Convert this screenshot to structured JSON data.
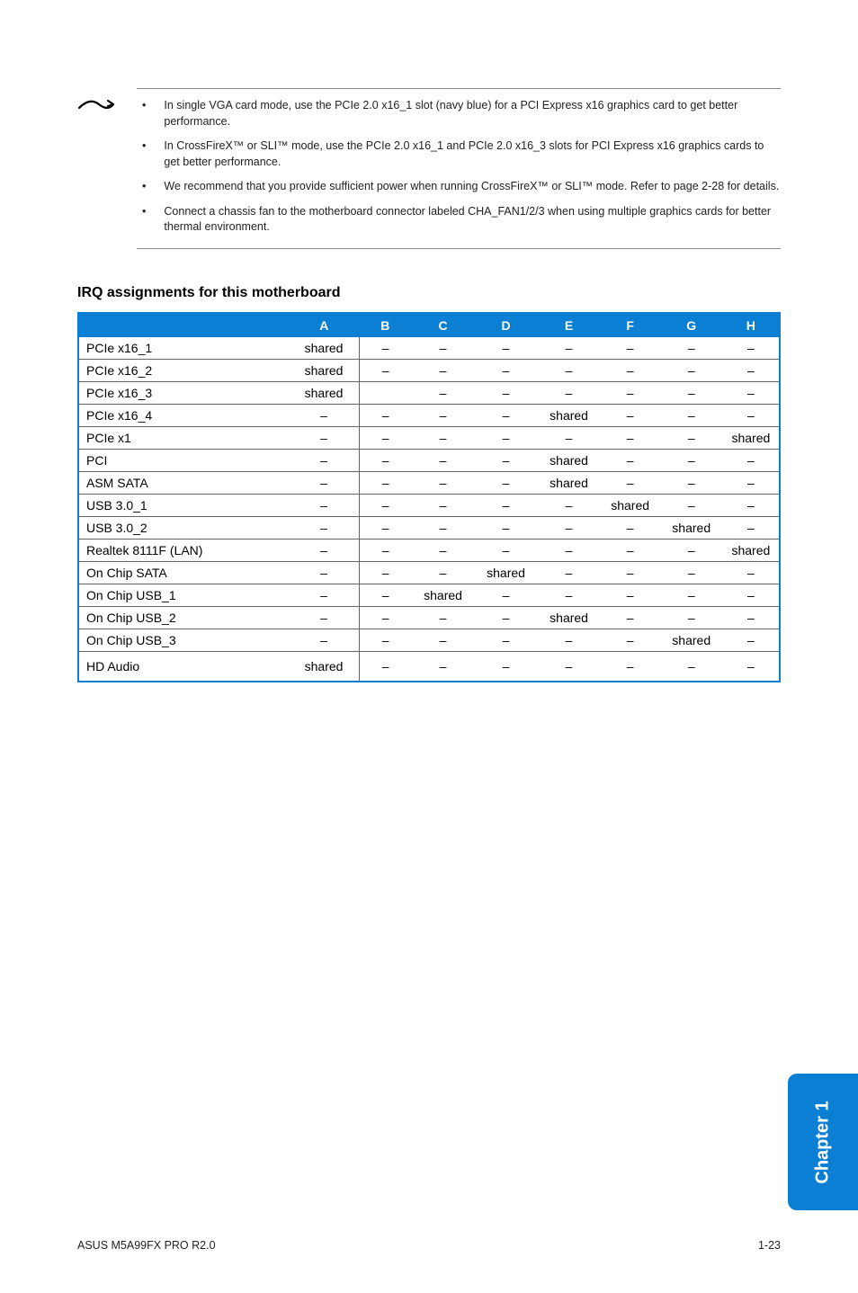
{
  "notes": {
    "items": [
      "In single VGA card mode, use the PCIe 2.0 x16_1 slot (navy blue) for a PCI Express x16 graphics card to get better performance.",
      "In CrossFireX™ or SLI™ mode, use the PCIe 2.0 x16_1 and PCIe 2.0 x16_3 slots for PCI Express x16 graphics cards to get better performance.",
      "We recommend that you provide sufficient power when running CrossFireX™ or SLI™ mode. Refer to page 2-28 for details.",
      "Connect a chassis fan to the motherboard connector labeled CHA_FAN1/2/3 when using multiple graphics cards for better thermal environment."
    ]
  },
  "section": {
    "heading": "IRQ assignments for this motherboard"
  },
  "table": {
    "columns": [
      "",
      "A",
      "B",
      "C",
      "D",
      "E",
      "F",
      "G",
      "H"
    ],
    "header_bg": "#0a7fd4",
    "header_fg": "#ffffff",
    "border_color": "#0a7fd4",
    "row_border": "#666666",
    "rows": [
      {
        "label": "PCIe x16_1",
        "cells": [
          "shared",
          "–",
          "–",
          "–",
          "–",
          "–",
          "–",
          "–"
        ]
      },
      {
        "label": "PCIe x16_2",
        "cells": [
          "shared",
          "–",
          "–",
          "–",
          "–",
          "–",
          "–",
          "–"
        ]
      },
      {
        "label": "PCIe x16_3",
        "cells": [
          "shared",
          "",
          "–",
          "–",
          "–",
          "–",
          "–",
          "–"
        ]
      },
      {
        "label": "PCIe x16_4",
        "cells": [
          "–",
          "–",
          "–",
          "–",
          "shared",
          "–",
          "–",
          "–"
        ]
      },
      {
        "label": "PCIe x1",
        "cells": [
          "–",
          "–",
          "–",
          "–",
          "–",
          "–",
          "–",
          "shared"
        ]
      },
      {
        "label": "PCI",
        "cells": [
          "–",
          "–",
          "–",
          "–",
          "shared",
          "–",
          "–",
          "–"
        ]
      },
      {
        "label": "ASM SATA",
        "cells": [
          "–",
          "–",
          "–",
          "–",
          "shared",
          "–",
          "–",
          "–"
        ]
      },
      {
        "label": "USB 3.0_1",
        "cells": [
          "–",
          "–",
          "–",
          "–",
          "–",
          "shared",
          "–",
          "–"
        ]
      },
      {
        "label": "USB 3.0_2",
        "cells": [
          "–",
          "–",
          "–",
          "–",
          "–",
          "–",
          "shared",
          "–"
        ]
      },
      {
        "label": "Realtek 8111F (LAN)",
        "cells": [
          "–",
          "–",
          "–",
          "–",
          "–",
          "–",
          "–",
          "shared"
        ]
      },
      {
        "label": "On Chip SATA",
        "cells": [
          "–",
          "–",
          "–",
          "shared",
          "–",
          "–",
          "–",
          "–"
        ]
      },
      {
        "label": "On Chip USB_1",
        "cells": [
          "–",
          "–",
          "shared",
          "–",
          "–",
          "–",
          "–",
          "–"
        ]
      },
      {
        "label": "On Chip USB_2",
        "cells": [
          "–",
          "–",
          "–",
          "–",
          "shared",
          "–",
          "–",
          "–"
        ]
      },
      {
        "label": "On Chip USB_3",
        "cells": [
          "–",
          "–",
          "–",
          "–",
          "–",
          "–",
          "shared",
          "–"
        ]
      },
      {
        "label": "HD Audio",
        "cells": [
          "shared",
          "–",
          "–",
          "–",
          "–",
          "–",
          "–",
          "–"
        ]
      }
    ],
    "col_widths": [
      "30%",
      "10%",
      "7.5%",
      "9%",
      "9%",
      "9%",
      "8.5%",
      "9%",
      "8%"
    ]
  },
  "side_tab": {
    "label": "Chapter 1"
  },
  "footer": {
    "left": "ASUS M5A99FX PRO R2.0",
    "right": "1-23"
  }
}
